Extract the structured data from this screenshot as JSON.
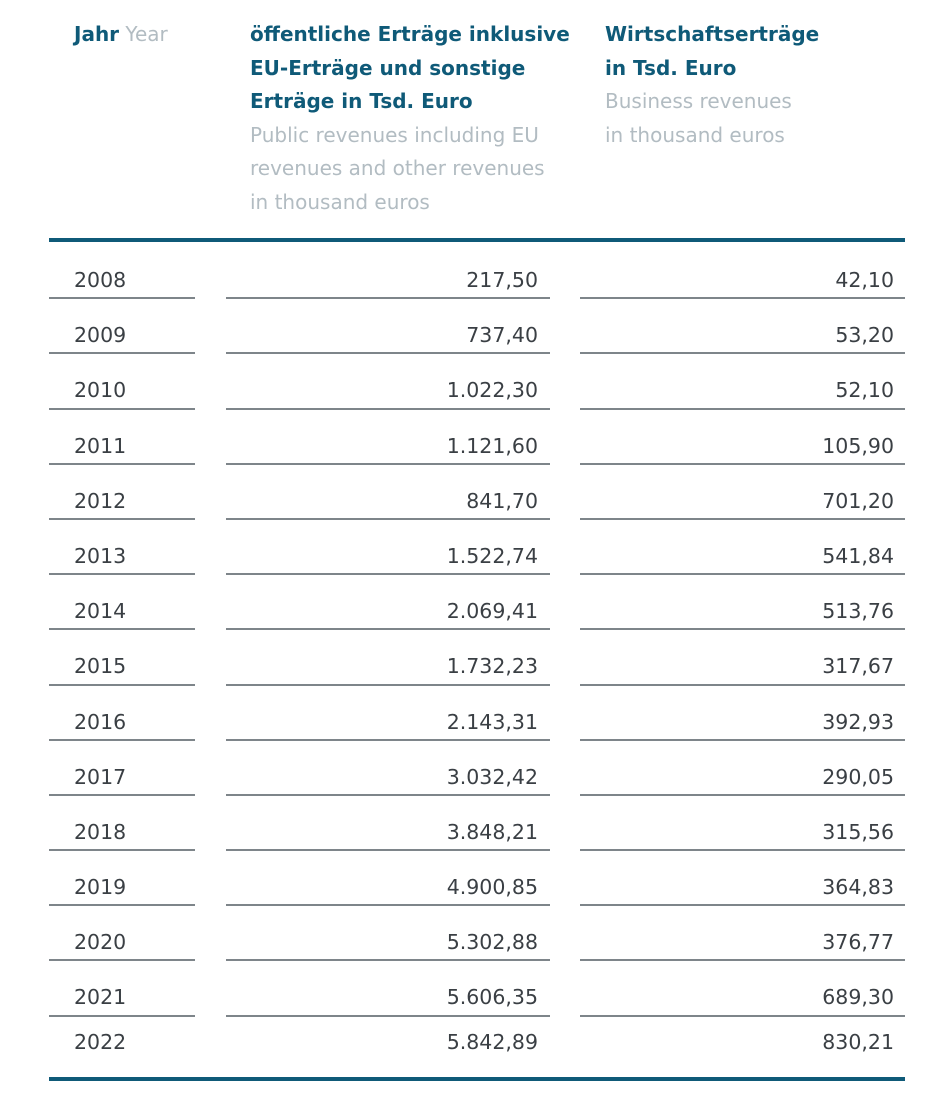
{
  "header": {
    "year": {
      "de": "Jahr",
      "en": "Year"
    },
    "public": {
      "de_lines": [
        "öffentliche Erträge inklusive",
        "EU-Erträge und sonstige",
        "Erträge in Tsd. Euro"
      ],
      "en_lines": [
        "Public revenues including EU",
        "revenues and other revenues",
        "in thousand euros"
      ]
    },
    "business": {
      "de_lines": [
        "Wirtschaftserträge",
        "in Tsd. Euro"
      ],
      "en_lines": [
        "Business revenues",
        "in thousand euros"
      ]
    }
  },
  "rows": [
    {
      "year": "2008",
      "public": "217,50",
      "business": "42,10"
    },
    {
      "year": "2009",
      "public": "737,40",
      "business": "53,20"
    },
    {
      "year": "2010",
      "public": "1.022,30",
      "business": "52,10"
    },
    {
      "year": "2011",
      "public": "1.121,60",
      "business": "105,90"
    },
    {
      "year": "2012",
      "public": "841,70",
      "business": "701,20"
    },
    {
      "year": "2013",
      "public": "1.522,74",
      "business": "541,84"
    },
    {
      "year": "2014",
      "public": "2.069,41",
      "business": "513,76"
    },
    {
      "year": "2015",
      "public": "1.732,23",
      "business": "317,67"
    },
    {
      "year": "2016",
      "public": "2.143,31",
      "business": "392,93"
    },
    {
      "year": "2017",
      "public": "3.032,42",
      "business": "290,05"
    },
    {
      "year": "2018",
      "public": "3.848,21",
      "business": "315,56"
    },
    {
      "year": "2019",
      "public": "4.900,85",
      "business": "364,83"
    },
    {
      "year": "2020",
      "public": "5.302,88",
      "business": "376,77"
    },
    {
      "year": "2021",
      "public": "5.606,35",
      "business": "689,30"
    },
    {
      "year": "2022",
      "public": "5.842,89",
      "business": "830,21"
    }
  ],
  "colors": {
    "heading": "#0f5a78",
    "subheading": "#b2bcc2",
    "rule": "#0f5a78",
    "separator": "#7e858a",
    "text": "#3a3f44"
  }
}
